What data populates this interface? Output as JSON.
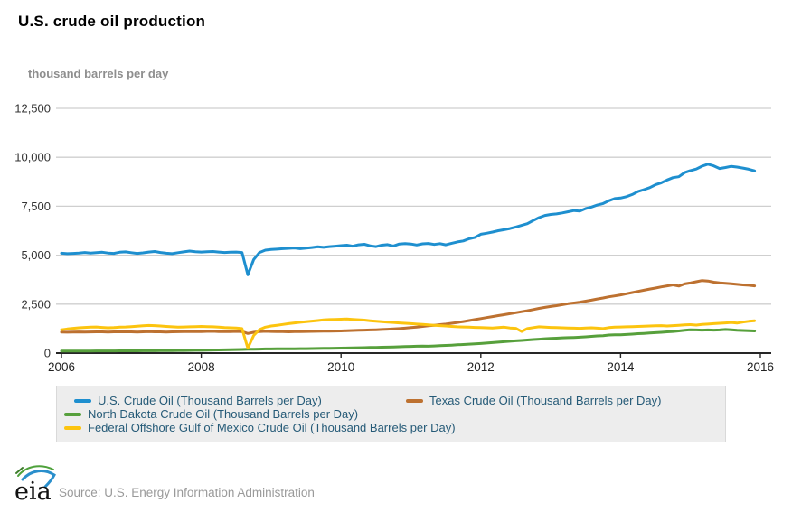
{
  "header": {
    "title": "U.S. crude oil production",
    "units_label": "thousand barrels per day"
  },
  "footer": {
    "logo_text": "eia",
    "source": "Source: U.S. Energy Information Administration"
  },
  "colors": {
    "us_line": "#1e8fcf",
    "texas_line": "#bd7130",
    "north_dakota_line": "#57a03c",
    "gulf_line": "#fcc40f",
    "gridline": "#cfcfcf",
    "axis": "#262626",
    "tick_label": "#333333",
    "legend_text": "#255a77",
    "legend_bg": "#ededed",
    "subtitle_gray": "#8e8e8e"
  },
  "chart_data": {
    "type": "line",
    "title": "U.S. crude oil production",
    "xlabel": "",
    "ylabel": "thousand barrels per day",
    "x_sampling": "monthly from 2006-01 through 2015-12",
    "x_range": [
      2006,
      2016
    ],
    "x_tick_labels": [
      "2006",
      "2008",
      "2010",
      "2012",
      "2014",
      "2016"
    ],
    "y_ticks": [
      0,
      2500,
      5000,
      7500,
      10000,
      12500
    ],
    "ylim": [
      0,
      12500
    ],
    "grid": "horizontal",
    "legend_position": "bottom",
    "series": [
      {
        "name": "U.S. Crude Oil (Thousand Barrels per Day)",
        "color": "#1e8fcf",
        "values": [
          5100,
          5080,
          5090,
          5110,
          5140,
          5110,
          5130,
          5150,
          5110,
          5090,
          5150,
          5170,
          5130,
          5090,
          5120,
          5160,
          5190,
          5140,
          5100,
          5080,
          5130,
          5170,
          5210,
          5180,
          5160,
          5180,
          5190,
          5160,
          5140,
          5150,
          5160,
          5140,
          4000,
          4780,
          5140,
          5260,
          5290,
          5310,
          5330,
          5350,
          5370,
          5330,
          5360,
          5390,
          5430,
          5400,
          5440,
          5460,
          5490,
          5510,
          5460,
          5530,
          5560,
          5480,
          5440,
          5510,
          5540,
          5470,
          5570,
          5590,
          5570,
          5520,
          5580,
          5600,
          5550,
          5590,
          5530,
          5610,
          5680,
          5730,
          5840,
          5910,
          6070,
          6120,
          6180,
          6250,
          6300,
          6360,
          6440,
          6520,
          6610,
          6770,
          6920,
          7030,
          7080,
          7110,
          7160,
          7220,
          7280,
          7250,
          7380,
          7460,
          7560,
          7640,
          7780,
          7890,
          7920,
          7990,
          8100,
          8250,
          8350,
          8450,
          8600,
          8700,
          8840,
          8960,
          9010,
          9220,
          9320,
          9400,
          9550,
          9650,
          9560,
          9430,
          9480,
          9540,
          9500,
          9450,
          9390,
          9310
        ]
      },
      {
        "name": "Texas Crude Oil (Thousand Barrels per Day)",
        "color": "#bd7130",
        "values": [
          1070,
          1065,
          1075,
          1080,
          1070,
          1078,
          1082,
          1086,
          1076,
          1082,
          1090,
          1086,
          1082,
          1076,
          1086,
          1092,
          1082,
          1086,
          1076,
          1082,
          1090,
          1096,
          1102,
          1096,
          1100,
          1106,
          1110,
          1100,
          1096,
          1100,
          1106,
          1096,
          1000,
          1060,
          1100,
          1112,
          1102,
          1096,
          1092,
          1086,
          1092,
          1096,
          1102,
          1106,
          1112,
          1116,
          1122,
          1126,
          1132,
          1142,
          1152,
          1162,
          1172,
          1182,
          1192,
          1202,
          1216,
          1232,
          1252,
          1272,
          1300,
          1330,
          1360,
          1392,
          1422,
          1452,
          1482,
          1522,
          1562,
          1612,
          1662,
          1712,
          1762,
          1812,
          1862,
          1912,
          1962,
          2012,
          2062,
          2112,
          2162,
          2222,
          2282,
          2332,
          2382,
          2422,
          2472,
          2522,
          2562,
          2602,
          2652,
          2702,
          2762,
          2812,
          2872,
          2922,
          2972,
          3032,
          3092,
          3152,
          3212,
          3272,
          3322,
          3382,
          3432,
          3482,
          3422,
          3532,
          3582,
          3642,
          3702,
          3682,
          3622,
          3582,
          3562,
          3542,
          3512,
          3482,
          3462,
          3432
        ]
      },
      {
        "name": "North Dakota Crude Oil (Thousand Barrels per Day)",
        "color": "#57a03c",
        "values": [
          100,
          102,
          104,
          105,
          106,
          108,
          109,
          110,
          111,
          112,
          114,
          115,
          116,
          117,
          118,
          120,
          122,
          124,
          127,
          130,
          133,
          136,
          139,
          142,
          145,
          150,
          155,
          160,
          165,
          172,
          178,
          185,
          192,
          198,
          205,
          210,
          212,
          215,
          218,
          220,
          222,
          225,
          228,
          232,
          236,
          240,
          244,
          248,
          252,
          258,
          264,
          270,
          277,
          284,
          291,
          298,
          306,
          314,
          322,
          330,
          342,
          350,
          360,
          352,
          364,
          376,
          390,
          408,
          424,
          440,
          456,
          470,
          490,
          512,
          535,
          558,
          580,
          602,
          625,
          648,
          670,
          692,
          712,
          732,
          745,
          760,
          778,
          790,
          796,
          812,
          830,
          855,
          875,
          892,
          922,
          932,
          938,
          952,
          970,
          990,
          1006,
          1022,
          1042,
          1062,
          1082,
          1102,
          1132,
          1162,
          1192,
          1182,
          1172,
          1182,
          1172,
          1182,
          1202,
          1192,
          1162,
          1152,
          1142,
          1132
        ]
      },
      {
        "name": "Federal Offshore Gulf of Mexico Crude Oil (Thousand Barrels per Day)",
        "color": "#fcc40f",
        "values": [
          1190,
          1230,
          1262,
          1292,
          1310,
          1322,
          1332,
          1312,
          1292,
          1302,
          1322,
          1332,
          1352,
          1372,
          1392,
          1412,
          1402,
          1382,
          1362,
          1342,
          1322,
          1332,
          1342,
          1352,
          1362,
          1352,
          1342,
          1322,
          1302,
          1292,
          1282,
          1252,
          250,
          900,
          1200,
          1322,
          1382,
          1422,
          1462,
          1502,
          1542,
          1572,
          1602,
          1632,
          1662,
          1692,
          1712,
          1722,
          1732,
          1742,
          1722,
          1702,
          1682,
          1652,
          1622,
          1602,
          1582,
          1562,
          1542,
          1522,
          1502,
          1482,
          1462,
          1442,
          1422,
          1402,
          1382,
          1362,
          1342,
          1332,
          1322,
          1312,
          1302,
          1292,
          1282,
          1302,
          1322,
          1282,
          1262,
          1102,
          1252,
          1302,
          1342,
          1322,
          1312,
          1302,
          1292,
          1282,
          1272,
          1262,
          1282,
          1292,
          1272,
          1252,
          1302,
          1322,
          1332,
          1342,
          1352,
          1362,
          1372,
          1382,
          1392,
          1402,
          1382,
          1402,
          1422,
          1442,
          1452,
          1432,
          1462,
          1482,
          1502,
          1522,
          1542,
          1562,
          1532,
          1582,
          1622,
          1652
        ]
      }
    ]
  }
}
